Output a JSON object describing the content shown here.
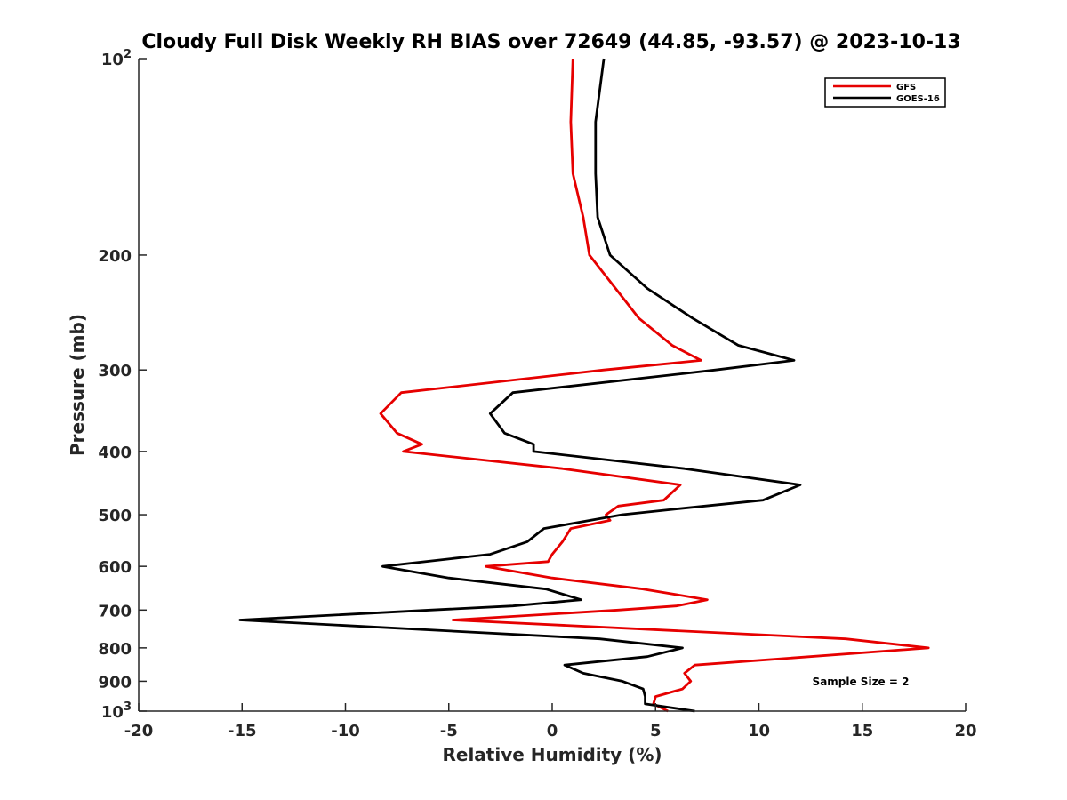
{
  "chart_data": {
    "type": "line",
    "title": "Cloudy Full Disk Weekly RH BIAS over 72649 (44.85, -93.57) @ 2023-10-13",
    "xlabel": "Relative Humidity (%)",
    "ylabel": "Pressure (mb)",
    "xlim": [
      -20,
      20
    ],
    "ylim": [
      100,
      1000
    ],
    "y_scale": "log",
    "y_reversed": true,
    "grid": false,
    "legend_position": "top-right",
    "x_ticks": [
      {
        "value": -20,
        "label": "-20"
      },
      {
        "value": -15,
        "label": "-15"
      },
      {
        "value": -10,
        "label": "-10"
      },
      {
        "value": -5,
        "label": "-5"
      },
      {
        "value": 0,
        "label": "0"
      },
      {
        "value": 5,
        "label": "5"
      },
      {
        "value": 10,
        "label": "10"
      },
      {
        "value": 15,
        "label": "15"
      },
      {
        "value": 20,
        "label": "20"
      }
    ],
    "y_ticks": [
      {
        "value": 100,
        "label": "10",
        "sup": "2"
      },
      {
        "value": 200,
        "label": "200"
      },
      {
        "value": 300,
        "label": "300"
      },
      {
        "value": 400,
        "label": "400"
      },
      {
        "value": 500,
        "label": "500"
      },
      {
        "value": 600,
        "label": "600"
      },
      {
        "value": 700,
        "label": "700"
      },
      {
        "value": 800,
        "label": "800"
      },
      {
        "value": 900,
        "label": "900"
      },
      {
        "value": 1000,
        "label": "10",
        "sup": "3"
      }
    ],
    "series": [
      {
        "name": "GFS",
        "color": "#e60000",
        "points": [
          [
            1.0,
            100
          ],
          [
            0.9,
            125
          ],
          [
            1.0,
            150
          ],
          [
            1.5,
            175
          ],
          [
            1.8,
            200
          ],
          [
            4.2,
            250
          ],
          [
            5.8,
            275
          ],
          [
            7.2,
            290
          ],
          [
            2.5,
            300
          ],
          [
            -7.3,
            325
          ],
          [
            -8.3,
            350
          ],
          [
            -7.5,
            375
          ],
          [
            -6.3,
            390
          ],
          [
            -7.2,
            400
          ],
          [
            0.5,
            425
          ],
          [
            6.2,
            450
          ],
          [
            5.4,
            475
          ],
          [
            3.2,
            485
          ],
          [
            2.6,
            500
          ],
          [
            2.8,
            510
          ],
          [
            0.9,
            525
          ],
          [
            0.5,
            550
          ],
          [
            0.0,
            575
          ],
          [
            -0.2,
            590
          ],
          [
            -3.2,
            600
          ],
          [
            0.0,
            625
          ],
          [
            4.4,
            650
          ],
          [
            7.5,
            675
          ],
          [
            6.0,
            690
          ],
          [
            3.2,
            700
          ],
          [
            -4.8,
            725
          ],
          [
            14.2,
            775
          ],
          [
            18.2,
            800
          ],
          [
            6.9,
            850
          ],
          [
            6.4,
            875
          ],
          [
            6.7,
            900
          ],
          [
            6.3,
            925
          ],
          [
            5.0,
            950
          ],
          [
            4.9,
            975
          ],
          [
            5.6,
            1000
          ]
        ]
      },
      {
        "name": "GOES-16",
        "color": "#000000",
        "points": [
          [
            2.5,
            100
          ],
          [
            2.1,
            125
          ],
          [
            2.1,
            150
          ],
          [
            2.2,
            175
          ],
          [
            2.8,
            200
          ],
          [
            4.6,
            225
          ],
          [
            6.8,
            250
          ],
          [
            9.0,
            275
          ],
          [
            11.7,
            290
          ],
          [
            7.9,
            300
          ],
          [
            -1.9,
            325
          ],
          [
            -3.0,
            350
          ],
          [
            -2.3,
            375
          ],
          [
            -0.9,
            390
          ],
          [
            -0.9,
            400
          ],
          [
            6.4,
            425
          ],
          [
            12.0,
            450
          ],
          [
            10.2,
            475
          ],
          [
            6.0,
            490
          ],
          [
            3.4,
            500
          ],
          [
            -0.4,
            525
          ],
          [
            -1.2,
            550
          ],
          [
            -3.0,
            575
          ],
          [
            -8.2,
            600
          ],
          [
            -5.0,
            625
          ],
          [
            -0.3,
            650
          ],
          [
            1.4,
            675
          ],
          [
            -1.9,
            690
          ],
          [
            -5.9,
            700
          ],
          [
            -15.1,
            725
          ],
          [
            2.3,
            775
          ],
          [
            6.3,
            800
          ],
          [
            4.6,
            825
          ],
          [
            0.6,
            850
          ],
          [
            1.5,
            875
          ],
          [
            3.4,
            900
          ],
          [
            4.4,
            925
          ],
          [
            4.5,
            950
          ],
          [
            4.5,
            975
          ],
          [
            6.9,
            1000
          ]
        ]
      }
    ],
    "annotation": "Sample Size = 2"
  }
}
